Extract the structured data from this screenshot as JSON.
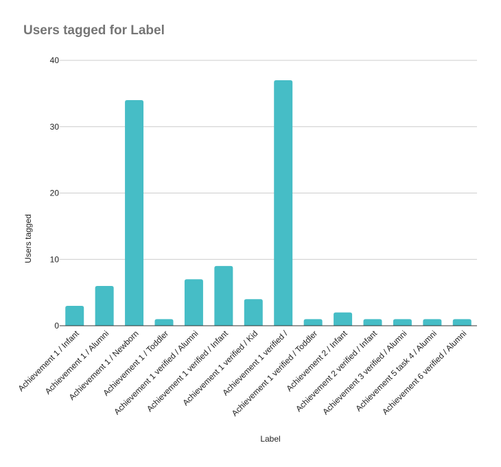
{
  "chart_data": {
    "type": "bar",
    "title": "Users tagged for Label",
    "xlabel": "Label",
    "ylabel": "Users tagged",
    "ylim": [
      0,
      40
    ],
    "yticks": [
      0,
      10,
      20,
      30,
      40
    ],
    "grid": true,
    "legend": "none",
    "bar_color": "#46bdc6",
    "categories": [
      "Achievement 1 / Infant",
      "Achievement 1 / Alumni",
      "Achievement 1 / Newborn",
      "Achievement 1 / Toddler",
      "Achievement 1 verified / Alumni",
      "Achievement 1 verified / Infant",
      "Achievement 1 verified / Kid",
      "Achievement 1 verified /",
      "Achievement 1 verified / Toddler",
      "Achievement 2 / Infant",
      "Achievement 2 verified / Infant",
      "Achievement 3 verified / Alumni",
      "Achievement 5 task 4 / Alumni",
      "Achievement 6 verified / Alumni"
    ],
    "values": [
      3,
      6,
      34,
      1,
      7,
      9,
      4,
      37,
      1,
      2,
      1,
      1,
      1,
      1
    ]
  }
}
